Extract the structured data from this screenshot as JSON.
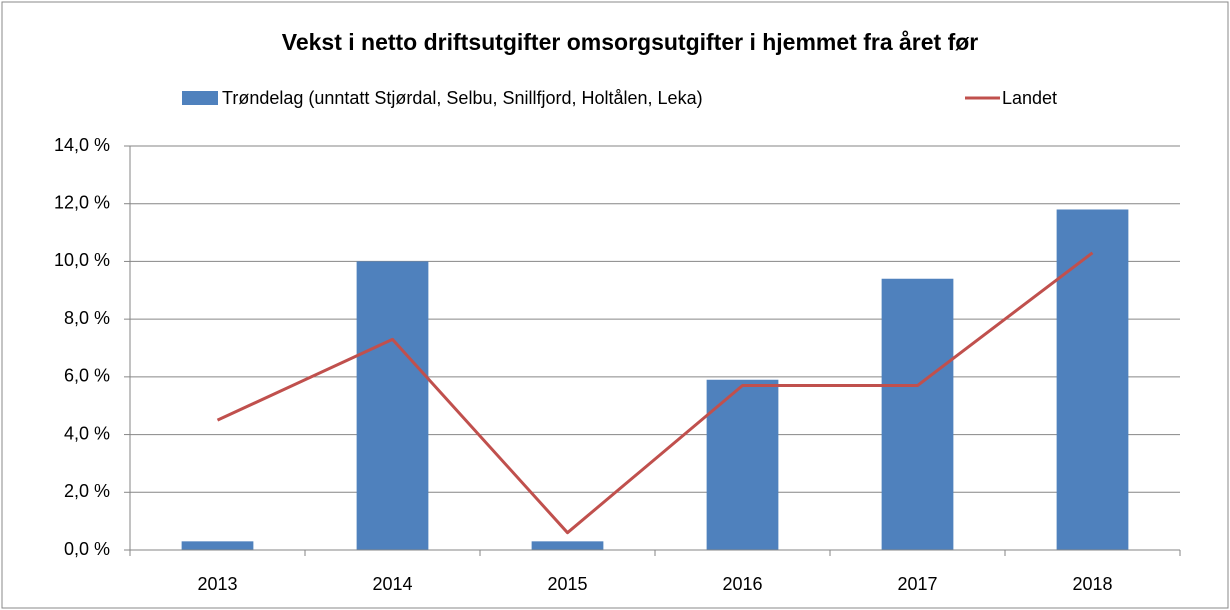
{
  "chart_data": {
    "type": "bar",
    "title": "Vekst i netto driftsutgifter omsorgsutgifter i hjemmet fra året før",
    "categories": [
      "2013",
      "2014",
      "2015",
      "2016",
      "2017",
      "2018"
    ],
    "series": [
      {
        "name": "Trøndelag (unntatt Stjørdal, Selbu, Snillfjord, Holtålen, Leka)",
        "type": "bar",
        "color": "#4f81bd",
        "values": [
          0.3,
          10.0,
          0.3,
          5.9,
          9.4,
          11.8
        ]
      },
      {
        "name": "Landet",
        "type": "line",
        "color": "#c0504d",
        "values": [
          4.5,
          7.3,
          0.6,
          5.7,
          5.7,
          10.3
        ]
      }
    ],
    "ylim": [
      0,
      14
    ],
    "yticks": [
      {
        "value": 0,
        "label": "0,0 %"
      },
      {
        "value": 2,
        "label": "2,0 %"
      },
      {
        "value": 4,
        "label": "4,0 %"
      },
      {
        "value": 6,
        "label": "6,0 %"
      },
      {
        "value": 8,
        "label": "8,0 %"
      },
      {
        "value": 10,
        "label": "10,0 %"
      },
      {
        "value": 12,
        "label": "12,0 %"
      },
      {
        "value": 14,
        "label": "14,0 %"
      }
    ],
    "grid": true
  }
}
